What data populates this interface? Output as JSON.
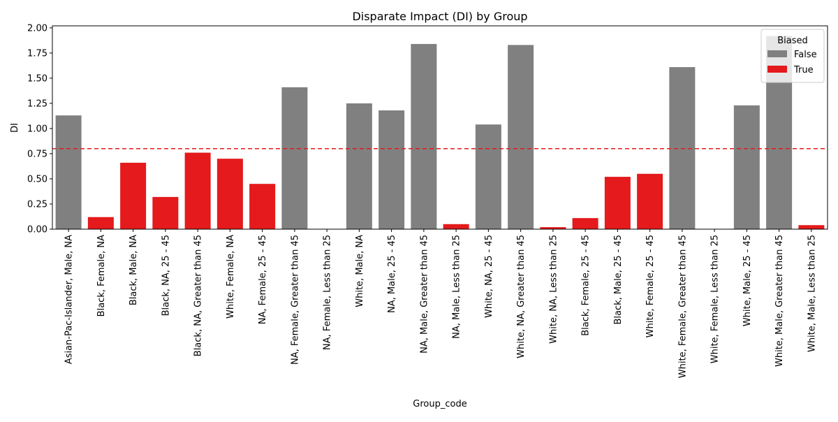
{
  "chart_data": {
    "type": "bar",
    "title": "Disparate Impact (DI) by Group",
    "xlabel": "Group_code",
    "ylabel": "DI",
    "ylim": [
      0,
      2.02
    ],
    "yticks": [
      "0.00",
      "0.25",
      "0.50",
      "0.75",
      "1.00",
      "1.25",
      "1.50",
      "1.75",
      "2.00"
    ],
    "threshold": 0.8,
    "grid": false,
    "legend": {
      "title": "Biased",
      "placement": "top-right",
      "entries": [
        {
          "label": "False",
          "color": "#808080"
        },
        {
          "label": "True",
          "color": "#e41a1c"
        }
      ]
    },
    "colors": {
      "false": "#808080",
      "true": "#e41a1c",
      "threshold": "#e41a1c"
    },
    "categories": [
      "Asian-Pac-Islander,  Male, NA",
      "Black,  Female, NA",
      "Black,  Male, NA",
      "Black, NA, 25 - 45",
      "Black, NA, Greater than 45",
      "White,  Female, NA",
      "NA,  Female, 25 - 45",
      "NA,  Female, Greater than 45",
      "NA,  Female, Less than 25",
      "White,  Male, NA",
      "NA,  Male, 25 - 45",
      "NA,  Male, Greater than 45",
      "NA,  Male, Less than 25",
      "White, NA, 25 - 45",
      "White, NA, Greater than 45",
      "White, NA, Less than 25",
      "Black,  Female, 25 - 45",
      "Black,  Male, 25 - 45",
      "White,  Female, 25 - 45",
      "White,  Female, Greater than 45",
      "White,  Female, Less than 25",
      "White,  Male, 25 - 45",
      "White,  Male, Greater than 45",
      "White,  Male, Less than 25"
    ],
    "values": [
      1.13,
      0.12,
      0.66,
      0.32,
      0.76,
      0.7,
      0.45,
      1.41,
      0.0,
      1.25,
      1.18,
      1.84,
      0.05,
      1.04,
      1.83,
      0.02,
      0.11,
      0.52,
      0.55,
      1.61,
      0.0,
      1.23,
      1.92,
      0.04
    ],
    "biased": [
      false,
      true,
      true,
      true,
      true,
      true,
      true,
      false,
      false,
      false,
      false,
      false,
      true,
      false,
      false,
      true,
      true,
      true,
      true,
      false,
      false,
      false,
      false,
      true
    ]
  }
}
